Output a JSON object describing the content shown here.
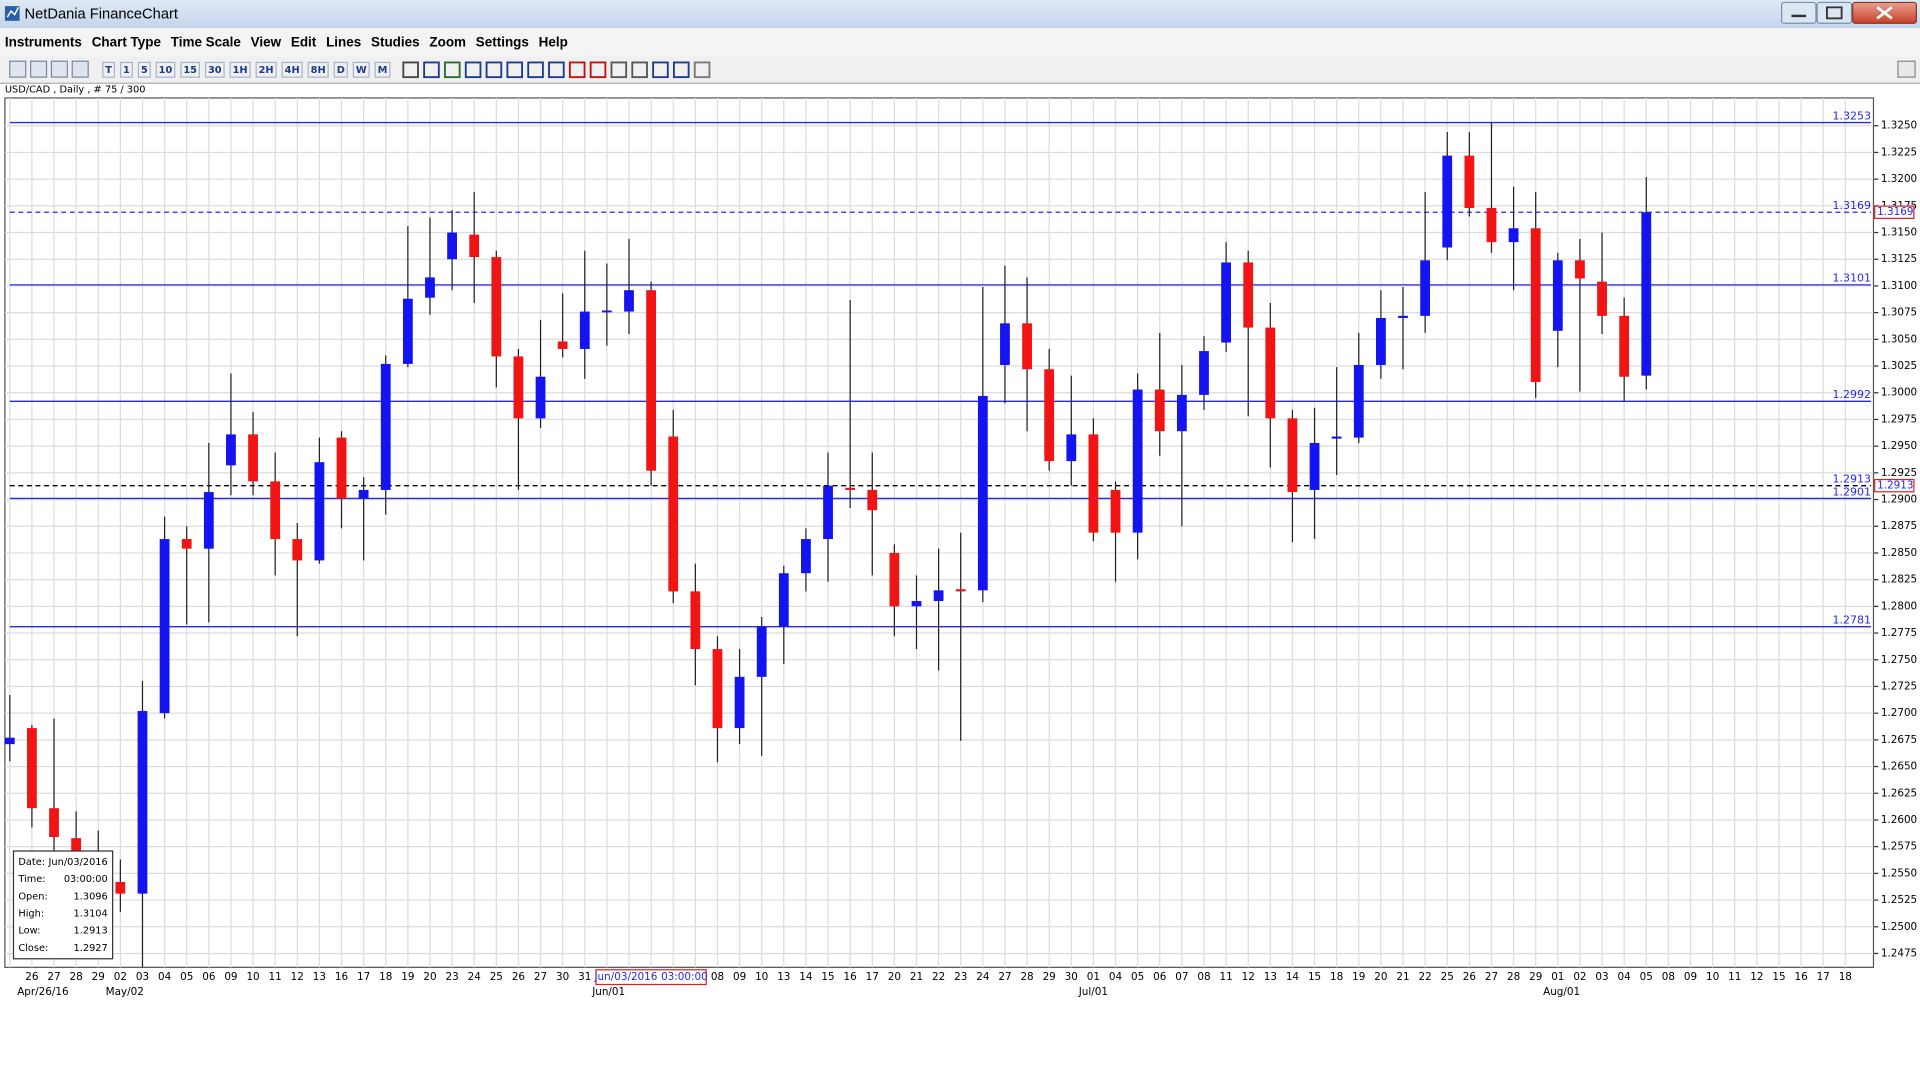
{
  "window": {
    "title": "NetDania FinanceChart"
  },
  "menu": [
    "Instruments",
    "Chart Type",
    "Time Scale",
    "View",
    "Edit",
    "Lines",
    "Studies",
    "Zoom",
    "Settings",
    "Help"
  ],
  "toolbar_buttons": [
    "T",
    "1",
    "5",
    "10",
    "15",
    "30",
    "1H",
    "2H",
    "4H",
    "8H",
    "D",
    "W",
    "M"
  ],
  "chart_data": {
    "type": "candlestick",
    "subtitle": "USD/CAD , Daily , # 75 / 300",
    "categories": [
      null,
      "26",
      "27",
      "28",
      "29",
      "02",
      "03",
      "04",
      "05",
      "06",
      "09",
      "10",
      "11",
      "12",
      "13",
      "16",
      "17",
      "18",
      "19",
      "20",
      "23",
      "24",
      "25",
      "26",
      "27",
      "30",
      "31",
      null,
      null,
      null,
      null,
      null,
      "08",
      "09",
      "10",
      "13",
      "14",
      "15",
      "16",
      "17",
      "20",
      "21",
      "22",
      "23",
      "24",
      "27",
      "28",
      "29",
      "30",
      "01",
      "04",
      "05",
      "06",
      "07",
      "08",
      "11",
      "12",
      "13",
      "14",
      "15",
      "18",
      "19",
      "20",
      "21",
      "22",
      "25",
      "26",
      "27",
      "28",
      "29",
      "01",
      "02",
      "03",
      "04",
      "05",
      "08",
      "09",
      "10",
      "11",
      "12",
      "15",
      "16",
      "17",
      "18"
    ],
    "period_labels": [
      {
        "label": "Apr/26/16",
        "category": 1
      },
      {
        "label": "May/02",
        "category": 5
      },
      {
        "label": "Jun/01",
        "category": 27
      },
      {
        "label": "Jul/01",
        "category": 49
      },
      {
        "label": "Aug/01",
        "category": 70
      }
    ],
    "open": [
      1.2671,
      1.2686,
      1.2611,
      1.2583,
      1.256,
      1.2542,
      1.2531,
      1.27,
      1.2863,
      1.2854,
      1.2932,
      1.2961,
      1.2917,
      1.2863,
      1.2843,
      1.2958,
      1.2901,
      1.2909,
      1.3027,
      1.3089,
      1.3125,
      1.3148,
      1.3127,
      1.3034,
      1.2976,
      1.3048,
      1.3041,
      1.3076,
      1.3076,
      1.3096,
      1.2959,
      1.2814,
      1.276,
      1.2686,
      1.2734,
      1.2781,
      1.2831,
      1.2863,
      1.2911,
      1.2909,
      1.285,
      1.28,
      1.2805,
      1.2816,
      1.2815,
      1.3026,
      1.3065,
      1.3022,
      1.2936,
      1.2961,
      1.2909,
      1.2869,
      1.3003,
      1.2964,
      1.2998,
      1.3047,
      1.3122,
      1.3061,
      1.2976,
      1.2909,
      1.2957,
      1.2958,
      1.3026,
      1.307,
      1.3072,
      1.3136,
      1.3222,
      1.3173,
      1.3141,
      1.3154,
      1.3058,
      1.3124,
      1.3104,
      1.3072,
      1.3016,
      null,
      null,
      null,
      null,
      null,
      null,
      null,
      null,
      null
    ],
    "high": [
      1.2717,
      1.2689,
      1.2695,
      1.2608,
      1.259,
      1.2563,
      1.273,
      1.2884,
      1.2875,
      1.2953,
      1.3018,
      1.2982,
      1.2944,
      1.2878,
      1.2958,
      1.2964,
      1.2921,
      1.3035,
      1.3156,
      1.3164,
      1.3171,
      1.3188,
      1.3133,
      1.3041,
      1.3068,
      1.3093,
      1.3133,
      1.3121,
      1.3144,
      1.3104,
      1.2984,
      1.284,
      1.2772,
      1.276,
      1.279,
      1.2838,
      1.2873,
      1.2944,
      1.3087,
      1.2944,
      1.2858,
      1.2829,
      1.2854,
      1.2869,
      1.3099,
      1.3119,
      1.3108,
      1.3041,
      1.3016,
      1.2976,
      1.2917,
      1.3018,
      1.3056,
      1.3026,
      1.3053,
      1.3141,
      1.3133,
      1.3084,
      1.2984,
      1.2986,
      1.3024,
      1.3056,
      1.3096,
      1.3099,
      1.3188,
      1.3244,
      1.3244,
      1.3253,
      1.3193,
      1.3188,
      1.3131,
      1.3144,
      1.315,
      1.3089,
      1.3202,
      null,
      null,
      null,
      null,
      null,
      null,
      null,
      null,
      null
    ],
    "low": [
      1.2655,
      1.2593,
      1.2568,
      1.254,
      1.253,
      1.2514,
      1.2462,
      1.2695,
      1.2783,
      1.2785,
      1.2904,
      1.2904,
      1.2829,
      1.2772,
      1.284,
      1.2873,
      1.2843,
      1.2886,
      1.3024,
      1.3073,
      1.3096,
      1.3084,
      1.3005,
      1.2909,
      1.2967,
      1.3033,
      1.3013,
      1.3044,
      1.3055,
      1.2913,
      1.2803,
      1.2726,
      1.2654,
      1.2671,
      1.266,
      1.2746,
      1.2814,
      1.2823,
      1.2892,
      1.2829,
      1.2772,
      1.276,
      1.274,
      1.2674,
      1.2804,
      1.299,
      1.2964,
      1.2927,
      1.2913,
      1.2861,
      1.2823,
      1.2844,
      1.2941,
      1.2875,
      1.2984,
      1.3038,
      1.2978,
      1.293,
      1.286,
      1.2863,
      1.2923,
      1.2953,
      1.3013,
      1.3022,
      1.3056,
      1.3124,
      1.3165,
      1.3131,
      1.3096,
      1.2995,
      1.3024,
      1.3001,
      1.3055,
      1.2992,
      1.3003,
      null,
      null,
      null,
      null,
      null,
      null,
      null,
      null,
      null
    ],
    "close": [
      1.2677,
      1.2611,
      1.2584,
      1.256,
      1.2548,
      1.2531,
      1.2702,
      1.2863,
      1.2854,
      1.2907,
      1.2961,
      1.2917,
      1.2863,
      1.2843,
      1.2935,
      1.2901,
      1.2909,
      1.3027,
      1.3088,
      1.3108,
      1.315,
      1.3127,
      1.3034,
      1.2976,
      1.3015,
      1.3041,
      1.3076,
      1.3077,
      1.3096,
      1.2927,
      1.2814,
      1.276,
      1.2686,
      1.2734,
      1.2781,
      1.2831,
      1.2863,
      1.2913,
      1.2909,
      1.289,
      1.28,
      1.2805,
      1.2815,
      1.2814,
      1.2997,
      1.3065,
      1.3022,
      1.2936,
      1.2961,
      1.2869,
      1.2869,
      1.3003,
      1.2964,
      1.2998,
      1.3039,
      1.3122,
      1.3061,
      1.2976,
      1.2907,
      1.2953,
      1.2959,
      1.3026,
      1.307,
      1.3072,
      1.3124,
      1.3222,
      1.3173,
      1.3141,
      1.3154,
      1.301,
      1.3124,
      1.3107,
      1.3072,
      1.3015,
      1.3169,
      null,
      null,
      null,
      null,
      null,
      null,
      null,
      null,
      null
    ],
    "up_color": "#1414f0",
    "down_color": "#f01414",
    "ylim": [
      1.2462,
      1.3276
    ],
    "yticks": [
      1.2475,
      {
        "value": 1.25,
        "label": "1.2500"
      },
      1.2525,
      {
        "value": 1.255,
        "label": "1.2550"
      },
      1.2575,
      {
        "value": 1.26,
        "label": "1.2600"
      },
      1.2625,
      {
        "value": 1.265,
        "label": "1.2650"
      },
      1.2675,
      {
        "value": 1.27,
        "label": "1.2700"
      },
      1.2725,
      {
        "value": 1.275,
        "label": "1.2750"
      },
      1.2775,
      {
        "value": 1.28,
        "label": "1.2800"
      },
      1.2825,
      {
        "value": 1.285,
        "label": "1.2850"
      },
      1.2875,
      {
        "value": 1.29,
        "label": "1.2900"
      },
      1.2925,
      {
        "value": 1.295,
        "label": "1.2950"
      },
      1.2975,
      {
        "value": 1.3,
        "label": "1.3000"
      },
      1.3025,
      {
        "value": 1.305,
        "label": "1.3050"
      },
      1.3075,
      {
        "value": 1.31,
        "label": "1.3100"
      },
      1.3125,
      {
        "value": 1.315,
        "label": "1.3150"
      },
      1.3175,
      {
        "value": 1.32,
        "label": "1.3200"
      },
      1.3225,
      {
        "value": 1.325,
        "label": "1.3250"
      }
    ],
    "grid": true,
    "levels": [
      {
        "value": 1.3253,
        "style": "solid",
        "color": "#2828e6",
        "axis_marker": false
      },
      {
        "value": 1.3169,
        "style": "dashed",
        "color": "#2828e6",
        "axis_marker": true
      },
      {
        "value": 1.3101,
        "style": "solid",
        "color": "#2828e6",
        "axis_marker": false
      },
      {
        "value": 1.2992,
        "style": "solid",
        "color": "#2828e6",
        "axis_marker": false
      },
      {
        "value": 1.2913,
        "style": "dashed",
        "color": "#000000",
        "axis_marker": true
      },
      {
        "value": 1.2901,
        "style": "solid",
        "color": "#2828e6",
        "axis_marker": false
      },
      {
        "value": 1.2781,
        "style": "solid",
        "color": "#2828e6",
        "axis_marker": false
      }
    ],
    "cursor": {
      "date": "Jun/03/2016",
      "time": "03:00:00",
      "category": 29,
      "labels": [
        "Date:",
        "Time:",
        "Open:",
        "High:",
        "Low:",
        "Close:"
      ]
    }
  }
}
